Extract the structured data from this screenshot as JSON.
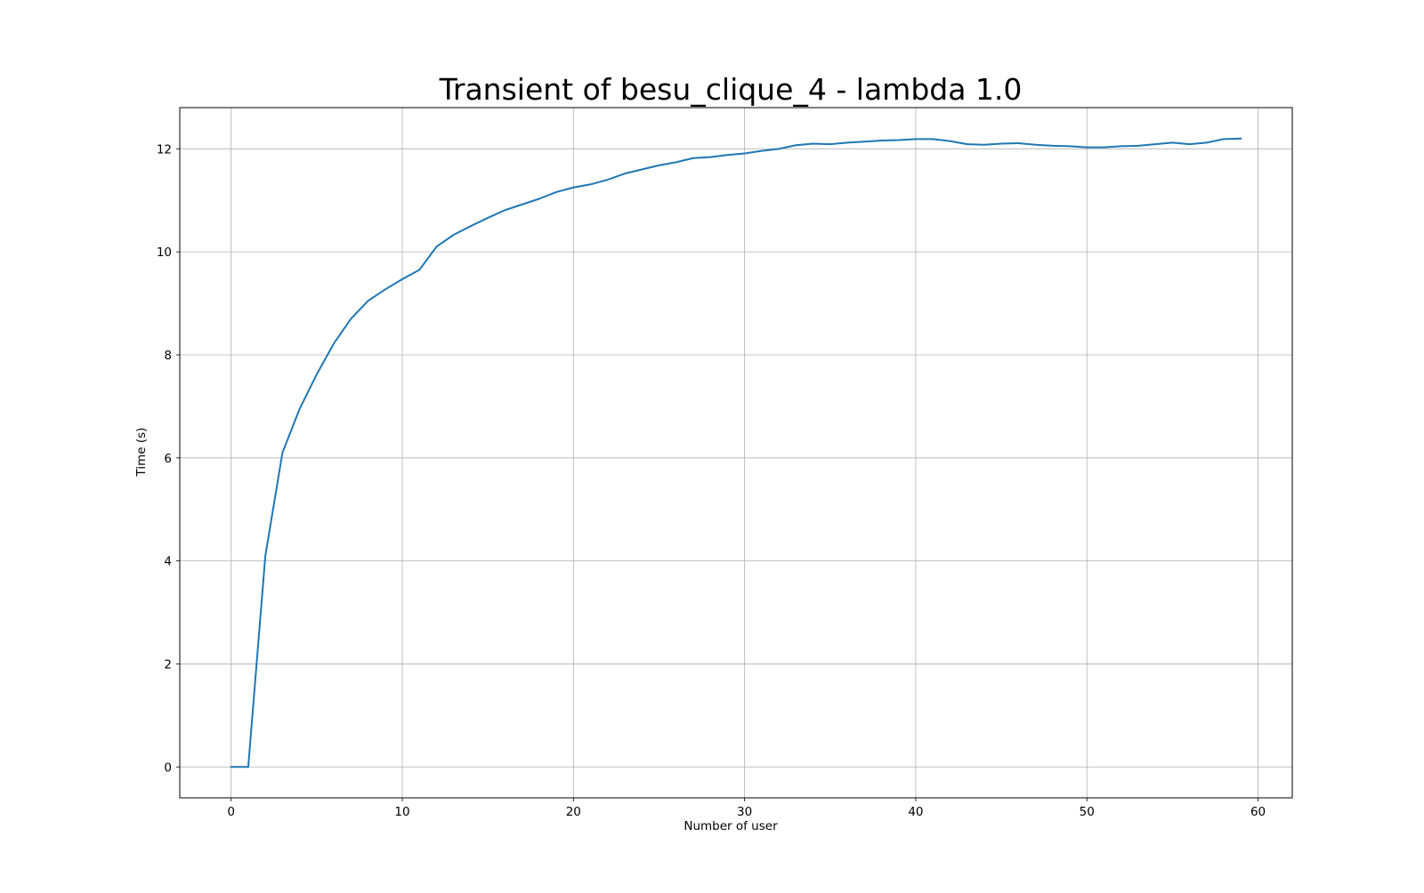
{
  "chart_data": {
    "type": "line",
    "title": "Transient of besu_clique_4 - lambda 1.0",
    "xlabel": "Number of user",
    "ylabel": "Time (s)",
    "xlim": [
      -3,
      62
    ],
    "ylim": [
      -0.6,
      12.8
    ],
    "xticks": [
      0,
      10,
      20,
      30,
      40,
      50,
      60
    ],
    "yticks": [
      0,
      2,
      4,
      6,
      8,
      10,
      12
    ],
    "grid": true,
    "series": [
      {
        "color": "#1f77b4",
        "x": [
          0,
          1,
          2,
          3,
          4,
          5,
          6,
          7,
          8,
          9,
          10,
          11,
          12,
          13,
          14,
          15,
          16,
          17,
          18,
          19,
          20,
          21,
          22,
          23,
          24,
          25,
          26,
          27,
          28,
          29,
          30,
          31,
          32,
          33,
          34,
          35,
          36,
          37,
          38,
          39,
          40,
          41,
          42,
          43,
          44,
          45,
          46,
          47,
          48,
          49,
          50,
          51,
          52,
          53,
          54,
          55,
          56,
          57,
          58,
          59
        ],
        "y": [
          0,
          0,
          4.1,
          6.1,
          6.95,
          7.62,
          8.22,
          8.7,
          9.05,
          9.27,
          9.47,
          9.65,
          10.1,
          10.33,
          10.5,
          10.66,
          10.81,
          10.92,
          11.03,
          11.16,
          11.25,
          11.31,
          11.4,
          11.52,
          11.6,
          11.68,
          11.74,
          11.82,
          11.84,
          11.88,
          11.91,
          11.96,
          12,
          12.07,
          12.1,
          12.09,
          12.12,
          12.14,
          12.16,
          12.17,
          12.19,
          12.19,
          12.15,
          12.09,
          12.08,
          12.1,
          12.11,
          12.08,
          12.06,
          12.05,
          12.03,
          12.03,
          12.05,
          12.06,
          12.09,
          12.12,
          12.09,
          12.12,
          12.19,
          12.2
        ]
      }
    ]
  }
}
